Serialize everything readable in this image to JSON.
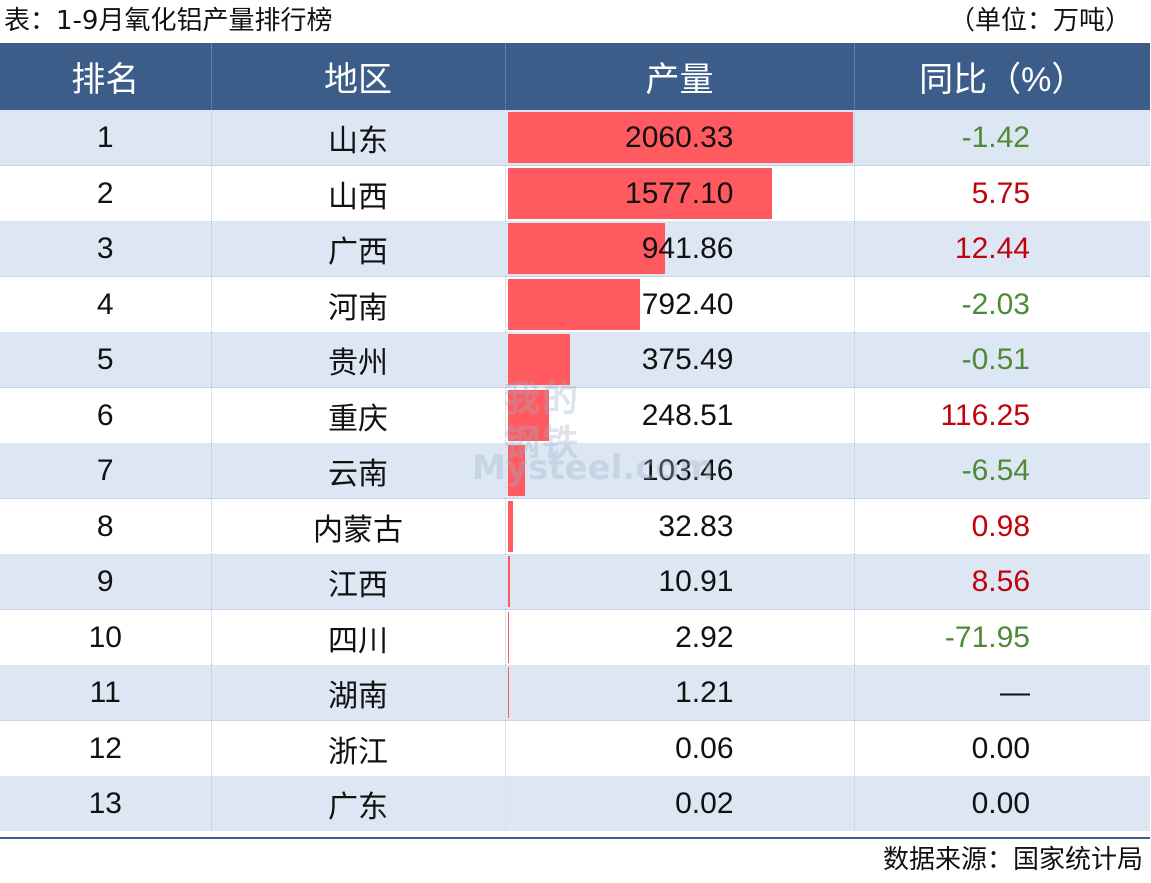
{
  "header": {
    "title": "表：1-9月氧化铝产量排行榜",
    "unit": "（单位：万吨）"
  },
  "footer": {
    "source": "数据来源：国家统计局"
  },
  "watermark": {
    "cn_line1": "我的",
    "cn_line2": "钢铁",
    "en": "Mysteel.com"
  },
  "colors": {
    "header_bg": "#3c5d8a",
    "stripe": "#dde7f4",
    "bar": "#ff5a5f",
    "negative": "#4e8a37",
    "positive": "#c0040c"
  },
  "chart_data": {
    "type": "table",
    "title": "表：1-9月氧化铝产量排行榜",
    "unit": "（单位：万吨）",
    "columns": [
      "排名",
      "地区",
      "产量",
      "同比（%）"
    ],
    "rows": [
      {
        "rank": "1",
        "region": "山东",
        "production": "2060.33",
        "production_value": 2060.33,
        "yoy": "-1.42",
        "yoy_sign": "neg"
      },
      {
        "rank": "2",
        "region": "山西",
        "production": "1577.10",
        "production_value": 1577.1,
        "yoy": "5.75",
        "yoy_sign": "pos"
      },
      {
        "rank": "3",
        "region": "广西",
        "production": "941.86",
        "production_value": 941.86,
        "yoy": "12.44",
        "yoy_sign": "pos"
      },
      {
        "rank": "4",
        "region": "河南",
        "production": "792.40",
        "production_value": 792.4,
        "yoy": "-2.03",
        "yoy_sign": "neg"
      },
      {
        "rank": "5",
        "region": "贵州",
        "production": "375.49",
        "production_value": 375.49,
        "yoy": "-0.51",
        "yoy_sign": "neg"
      },
      {
        "rank": "6",
        "region": "重庆",
        "production": "248.51",
        "production_value": 248.51,
        "yoy": "116.25",
        "yoy_sign": "pos"
      },
      {
        "rank": "7",
        "region": "云南",
        "production": "103.46",
        "production_value": 103.46,
        "yoy": "-6.54",
        "yoy_sign": "neg"
      },
      {
        "rank": "8",
        "region": "内蒙古",
        "production": "32.83",
        "production_value": 32.83,
        "yoy": "0.98",
        "yoy_sign": "pos"
      },
      {
        "rank": "9",
        "region": "江西",
        "production": "10.91",
        "production_value": 10.91,
        "yoy": "8.56",
        "yoy_sign": "pos"
      },
      {
        "rank": "10",
        "region": "四川",
        "production": "2.92",
        "production_value": 2.92,
        "yoy": "-71.95",
        "yoy_sign": "neg"
      },
      {
        "rank": "11",
        "region": "湖南",
        "production": "1.21",
        "production_value": 1.21,
        "yoy": "—",
        "yoy_sign": "zero"
      },
      {
        "rank": "12",
        "region": "浙江",
        "production": "0.06",
        "production_value": 0.06,
        "yoy": "0.00",
        "yoy_sign": "zero"
      },
      {
        "rank": "13",
        "region": "广东",
        "production": "0.02",
        "production_value": 0.02,
        "yoy": "0.00",
        "yoy_sign": "zero"
      }
    ]
  }
}
